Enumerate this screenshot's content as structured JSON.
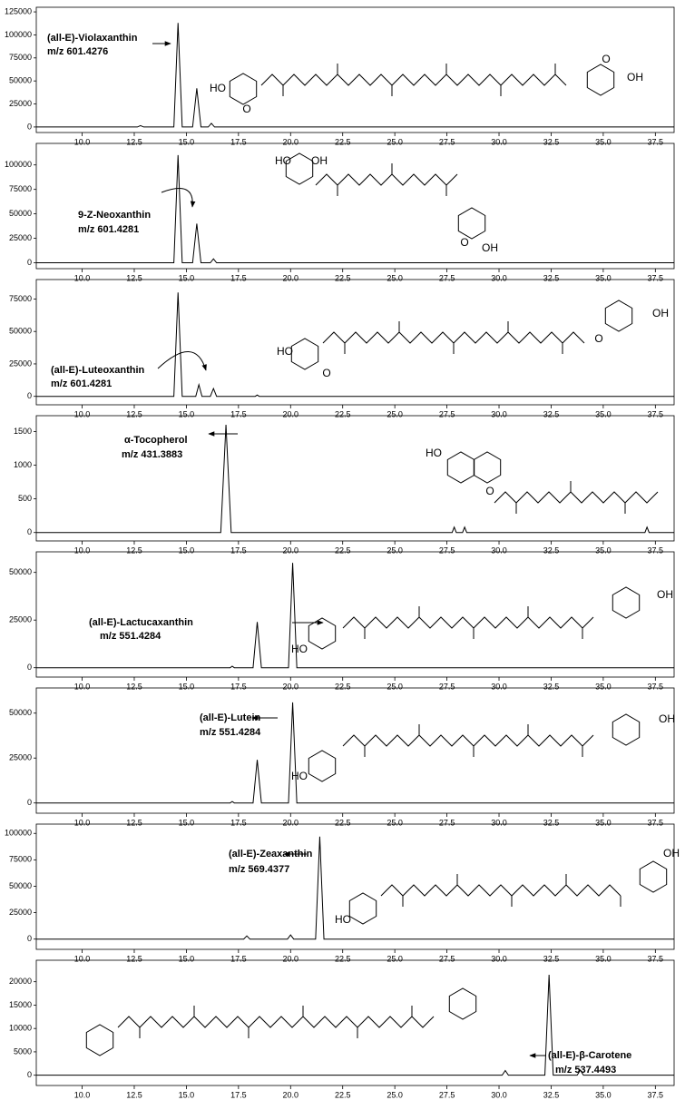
{
  "chart_data": [
    {
      "type": "line",
      "annotations": [
        "(all-E)-Violaxanthin",
        "m/z 601.4276"
      ],
      "structure_labels": [
        "HO",
        "O",
        "O",
        "OH"
      ],
      "x": [
        7.8,
        12.65,
        12.8,
        12.95,
        14.4,
        14.6,
        14.8,
        15.3,
        15.5,
        15.7,
        16.05,
        16.2,
        16.35,
        38.4
      ],
      "values": [
        0,
        0,
        1500,
        0,
        0,
        113000,
        0,
        0,
        42000,
        0,
        0,
        4000,
        0,
        0
      ],
      "color": "#000000",
      "xlim": [
        7.8,
        38.4
      ],
      "ylim": [
        -6000,
        130000
      ],
      "yticks": [
        0,
        25000,
        50000,
        75000,
        100000,
        125000
      ],
      "xticks": [
        {
          "value": 10,
          "label": "10.0"
        },
        {
          "value": 12.5,
          "label": "12.5"
        },
        {
          "value": 15,
          "label": "15.0"
        },
        {
          "value": 17.5,
          "label": "17.5"
        },
        {
          "value": 20,
          "label": "20.0"
        },
        {
          "value": 22.5,
          "label": "22.5"
        },
        {
          "value": 25,
          "label": "25.0"
        },
        {
          "value": 27.5,
          "label": "27.5"
        },
        {
          "value": 30,
          "label": "30.0"
        },
        {
          "value": 32.5,
          "label": "32.5"
        },
        {
          "value": 35,
          "label": "35.0"
        },
        {
          "value": 37.5,
          "label": "37.5"
        }
      ]
    },
    {
      "type": "line",
      "annotations": [
        "9-Z-Neoxanthin",
        "m/z 601.4281"
      ],
      "structure_labels": [
        "HO",
        "OH",
        "O",
        "OH"
      ],
      "x": [
        7.8,
        14.4,
        14.6,
        14.8,
        15.3,
        15.5,
        15.7,
        16.15,
        16.3,
        16.45,
        38.4
      ],
      "values": [
        0,
        0,
        110000,
        0,
        0,
        40000,
        0,
        0,
        4000,
        0,
        0
      ],
      "color": "#000000",
      "xlim": [
        7.8,
        38.4
      ],
      "ylim": [
        -6000,
        122000
      ],
      "yticks": [
        0,
        25000,
        50000,
        75000,
        100000
      ],
      "xticks": [
        {
          "value": 10,
          "label": "10.0"
        },
        {
          "value": 12.5,
          "label": "12.5"
        },
        {
          "value": 15,
          "label": "15.0"
        },
        {
          "value": 17.5,
          "label": "17.5"
        },
        {
          "value": 20,
          "label": "20.0"
        },
        {
          "value": 22.5,
          "label": "22.5"
        },
        {
          "value": 25,
          "label": "25.0"
        },
        {
          "value": 27.5,
          "label": "27.5"
        },
        {
          "value": 30,
          "label": "30.0"
        },
        {
          "value": 32.5,
          "label": "32.5"
        },
        {
          "value": 35,
          "label": "35.0"
        },
        {
          "value": 37.5,
          "label": "37.5"
        }
      ]
    },
    {
      "type": "line",
      "annotations": [
        "(all-E)-Luteoxanthin",
        "m/z 601.4281"
      ],
      "structure_labels": [
        "HO",
        "O",
        "O",
        "OH"
      ],
      "x": [
        7.8,
        14.4,
        14.6,
        14.8,
        15.45,
        15.6,
        15.75,
        16.15,
        16.3,
        16.45,
        18.3,
        18.4,
        18.5,
        38.4
      ],
      "values": [
        0,
        0,
        80000,
        0,
        0,
        9000,
        0,
        0,
        6000,
        0,
        0,
        1000,
        0,
        0
      ],
      "color": "#000000",
      "xlim": [
        7.8,
        38.4
      ],
      "ylim": [
        -6500,
        90000
      ],
      "yticks": [
        0,
        25000,
        50000,
        75000
      ],
      "xticks": [
        {
          "value": 10,
          "label": "10.0"
        },
        {
          "value": 12.5,
          "label": "12.5"
        },
        {
          "value": 15,
          "label": "15.0"
        },
        {
          "value": 17.5,
          "label": "17.5"
        },
        {
          "value": 20,
          "label": "20.0"
        },
        {
          "value": 22.5,
          "label": "22.5"
        },
        {
          "value": 25,
          "label": "25.0"
        },
        {
          "value": 27.5,
          "label": "27.5"
        },
        {
          "value": 30,
          "label": "30.0"
        },
        {
          "value": 32.5,
          "label": "32.5"
        },
        {
          "value": 35,
          "label": "35.0"
        },
        {
          "value": 37.5,
          "label": "37.5"
        }
      ]
    },
    {
      "type": "line",
      "annotations": [
        "α-Tocopherol",
        "m/z 431.3883"
      ],
      "structure_labels": [
        "HO",
        "O"
      ],
      "x": [
        7.8,
        16.65,
        16.9,
        17.15,
        27.75,
        27.85,
        27.95,
        28.25,
        28.35,
        28.45,
        37.0,
        37.1,
        37.2,
        38.4
      ],
      "values": [
        0,
        0,
        1600,
        0,
        0,
        80,
        0,
        0,
        80,
        0,
        0,
        80,
        0,
        0
      ],
      "color": "#000000",
      "xlim": [
        7.8,
        38.4
      ],
      "ylim": [
        -125,
        1736
      ],
      "yticks": [
        0,
        500,
        1000,
        1500
      ],
      "xticks": [
        {
          "value": 10,
          "label": "10.0"
        },
        {
          "value": 12.5,
          "label": "12.5"
        },
        {
          "value": 15,
          "label": "15.0"
        },
        {
          "value": 17.5,
          "label": "17.5"
        },
        {
          "value": 20,
          "label": "20.0"
        },
        {
          "value": 22.5,
          "label": "22.5"
        },
        {
          "value": 25,
          "label": "25.0"
        },
        {
          "value": 27.5,
          "label": "27.5"
        },
        {
          "value": 30,
          "label": "30.0"
        },
        {
          "value": 32.5,
          "label": "32.5"
        },
        {
          "value": 35,
          "label": "35.0"
        },
        {
          "value": 37.5,
          "label": "37.5"
        }
      ]
    },
    {
      "type": "line",
      "annotations": [
        "(all-E)-Lactucaxanthin",
        "m/z 551.4284"
      ],
      "structure_labels": [
        "HO",
        "OH"
      ],
      "x": [
        7.8,
        17.1,
        17.2,
        17.3,
        18.2,
        18.4,
        18.6,
        19.9,
        20.1,
        20.3,
        38.4
      ],
      "values": [
        0,
        0,
        800,
        0,
        0,
        24000,
        0,
        0,
        55000,
        0,
        0
      ],
      "color": "#000000",
      "xlim": [
        7.8,
        38.4
      ],
      "ylim": [
        -4900,
        60800
      ],
      "yticks": [
        0,
        25000,
        50000
      ],
      "xticks": [
        {
          "value": 10,
          "label": "10.0"
        },
        {
          "value": 12.5,
          "label": "12.5"
        },
        {
          "value": 15,
          "label": "15.0"
        },
        {
          "value": 17.5,
          "label": "17.5"
        },
        {
          "value": 20,
          "label": "20.0"
        },
        {
          "value": 22.5,
          "label": "22.5"
        },
        {
          "value": 25,
          "label": "25.0"
        },
        {
          "value": 27.5,
          "label": "27.5"
        },
        {
          "value": 30,
          "label": "30.0"
        },
        {
          "value": 32.5,
          "label": "32.5"
        },
        {
          "value": 35,
          "label": "35.0"
        },
        {
          "value": 37.5,
          "label": "37.5"
        }
      ]
    },
    {
      "type": "line",
      "annotations": [
        "(all-E)-Lutein",
        "m/z 551.4284"
      ],
      "structure_labels": [
        "HO",
        "OH"
      ],
      "x": [
        7.8,
        17.1,
        17.2,
        17.3,
        18.2,
        18.4,
        18.6,
        19.9,
        20.1,
        20.3,
        38.4
      ],
      "values": [
        0,
        0,
        800,
        0,
        0,
        24000,
        0,
        0,
        56000,
        0,
        0
      ],
      "color": "#000000",
      "xlim": [
        7.8,
        38.4
      ],
      "ylim": [
        -5700,
        64000
      ],
      "yticks": [
        0,
        25000,
        50000
      ],
      "xticks": [
        {
          "value": 10,
          "label": "10.0"
        },
        {
          "value": 12.5,
          "label": "12.5"
        },
        {
          "value": 15,
          "label": "15.0"
        },
        {
          "value": 17.5,
          "label": "17.5"
        },
        {
          "value": 20,
          "label": "20.0"
        },
        {
          "value": 22.5,
          "label": "22.5"
        },
        {
          "value": 25,
          "label": "25.0"
        },
        {
          "value": 27.5,
          "label": "27.5"
        },
        {
          "value": 30,
          "label": "30.0"
        },
        {
          "value": 32.5,
          "label": "32.5"
        },
        {
          "value": 35,
          "label": "35.0"
        },
        {
          "value": 37.5,
          "label": "37.5"
        }
      ]
    },
    {
      "type": "line",
      "annotations": [
        "(all-E)-Zeaxanthin",
        "m/z 569.4377"
      ],
      "structure_labels": [
        "HO",
        "OH"
      ],
      "x": [
        7.8,
        17.75,
        17.9,
        18.05,
        19.85,
        20.0,
        20.15,
        21.2,
        21.4,
        21.6,
        38.4
      ],
      "values": [
        0,
        0,
        3000,
        0,
        0,
        4000,
        0,
        0,
        97000,
        0,
        0
      ],
      "color": "#000000",
      "xlim": [
        7.8,
        38.4
      ],
      "ylim": [
        -9700,
        108800
      ],
      "yticks": [
        0,
        25000,
        50000,
        75000,
        100000
      ],
      "xticks": [
        {
          "value": 10,
          "label": "10.0"
        },
        {
          "value": 12.5,
          "label": "12.5"
        },
        {
          "value": 15,
          "label": "15.0"
        },
        {
          "value": 17.5,
          "label": "17.5"
        },
        {
          "value": 20,
          "label": "20.0"
        },
        {
          "value": 22.5,
          "label": "22.5"
        },
        {
          "value": 25,
          "label": "25.0"
        },
        {
          "value": 27.5,
          "label": "27.5"
        },
        {
          "value": 30,
          "label": "30.0"
        },
        {
          "value": 32.5,
          "label": "32.5"
        },
        {
          "value": 35,
          "label": "35.0"
        },
        {
          "value": 37.5,
          "label": "37.5"
        }
      ]
    },
    {
      "type": "line",
      "annotations": [
        "(all-E)-β-Carotene",
        "m/z 537.4493"
      ],
      "structure_labels": [],
      "x": [
        7.8,
        30.15,
        30.3,
        30.45,
        32.2,
        32.4,
        32.6,
        33.75,
        33.9,
        34.05,
        38.4
      ],
      "values": [
        0,
        0,
        1000,
        0,
        0,
        21500,
        0,
        0,
        1100,
        0,
        0
      ],
      "color": "#000000",
      "xlim": [
        7.8,
        38.4
      ],
      "ylim": [
        -2200,
        24600
      ],
      "yticks": [
        0,
        5000,
        10000,
        15000,
        20000
      ],
      "xticks": [
        {
          "value": 10,
          "label": "10.0"
        },
        {
          "value": 12.5,
          "label": "12.5"
        },
        {
          "value": 15,
          "label": "15.0"
        },
        {
          "value": 17.5,
          "label": "17.5"
        },
        {
          "value": 20,
          "label": "20.0"
        },
        {
          "value": 22.5,
          "label": "22.5"
        },
        {
          "value": 25,
          "label": "25.0"
        },
        {
          "value": 27.5,
          "label": "27.5"
        },
        {
          "value": 30,
          "label": "30.0"
        },
        {
          "value": 32.5,
          "label": "32.5"
        },
        {
          "value": 35,
          "label": "35.0"
        },
        {
          "value": 37.5,
          "label": "37.5"
        }
      ]
    }
  ]
}
